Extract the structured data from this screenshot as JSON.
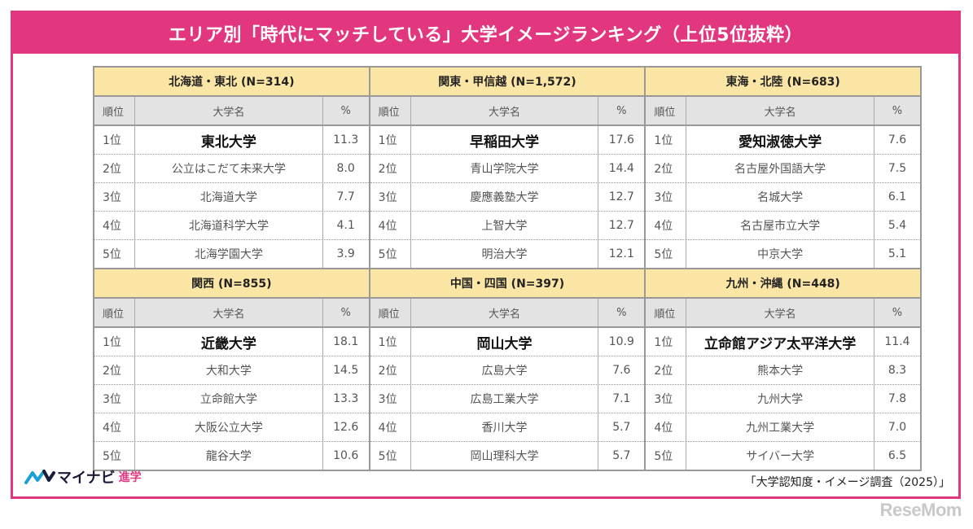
{
  "title": "エリア別「時代にマッチしている」大学イメージランキング（上位5位抜粋）",
  "columns": {
    "rank": "順位",
    "name": "大学名",
    "pct": "%"
  },
  "regions": [
    {
      "label": "北海道・東北 (N=314)",
      "rows": [
        {
          "rank": "1位",
          "name": "東北大学",
          "pct": "11.3"
        },
        {
          "rank": "2位",
          "name": "公立はこだて未来大学",
          "pct": "8.0"
        },
        {
          "rank": "3位",
          "name": "北海道大学",
          "pct": "7.7"
        },
        {
          "rank": "4位",
          "name": "北海道科学大学",
          "pct": "4.1"
        },
        {
          "rank": "5位",
          "name": "北海学園大学",
          "pct": "3.9"
        }
      ]
    },
    {
      "label": "関東・甲信越 (N=1,572)",
      "rows": [
        {
          "rank": "1位",
          "name": "早稲田大学",
          "pct": "17.6"
        },
        {
          "rank": "2位",
          "name": "青山学院大学",
          "pct": "14.4"
        },
        {
          "rank": "3位",
          "name": "慶應義塾大学",
          "pct": "12.7"
        },
        {
          "rank": "4位",
          "name": "上智大学",
          "pct": "12.7"
        },
        {
          "rank": "5位",
          "name": "明治大学",
          "pct": "12.1"
        }
      ]
    },
    {
      "label": "東海・北陸 (N=683)",
      "rows": [
        {
          "rank": "1位",
          "name": "愛知淑徳大学",
          "pct": "7.6"
        },
        {
          "rank": "2位",
          "name": "名古屋外国語大学",
          "pct": "7.5"
        },
        {
          "rank": "3位",
          "name": "名城大学",
          "pct": "6.1"
        },
        {
          "rank": "4位",
          "name": "名古屋市立大学",
          "pct": "5.4"
        },
        {
          "rank": "5位",
          "name": "中京大学",
          "pct": "5.1"
        }
      ]
    },
    {
      "label": "関西 (N=855)",
      "rows": [
        {
          "rank": "1位",
          "name": "近畿大学",
          "pct": "18.1"
        },
        {
          "rank": "2位",
          "name": "大和大学",
          "pct": "14.5"
        },
        {
          "rank": "3位",
          "name": "立命館大学",
          "pct": "13.3"
        },
        {
          "rank": "4位",
          "name": "大阪公立大学",
          "pct": "12.6"
        },
        {
          "rank": "5位",
          "name": "龍谷大学",
          "pct": "10.6"
        }
      ]
    },
    {
      "label": "中国・四国 (N=397)",
      "rows": [
        {
          "rank": "1位",
          "name": "岡山大学",
          "pct": "10.9"
        },
        {
          "rank": "2位",
          "name": "広島大学",
          "pct": "7.6"
        },
        {
          "rank": "3位",
          "name": "広島工業大学",
          "pct": "7.1"
        },
        {
          "rank": "4位",
          "name": "香川大学",
          "pct": "5.7"
        },
        {
          "rank": "5位",
          "name": "岡山理科大学",
          "pct": "5.7"
        }
      ]
    },
    {
      "label": "九州・沖縄 (N=448)",
      "rows": [
        {
          "rank": "1位",
          "name": "立命館アジア太平洋大学",
          "pct": "11.4"
        },
        {
          "rank": "2位",
          "name": "熊本大学",
          "pct": "8.3"
        },
        {
          "rank": "3位",
          "name": "九州大学",
          "pct": "7.8"
        },
        {
          "rank": "4位",
          "name": "九州工業大学",
          "pct": "7.0"
        },
        {
          "rank": "5位",
          "name": "サイバー大学",
          "pct": "6.5"
        }
      ]
    }
  ],
  "logo": {
    "name": "マイナビ",
    "sub": "進学"
  },
  "source": "「大学認知度・イメージ調査（2025）」",
  "watermark": "ReseMom",
  "colors": {
    "accent": "#e2377f",
    "region_header": "#fbe6a6",
    "column_header": "#e3e3e3"
  }
}
